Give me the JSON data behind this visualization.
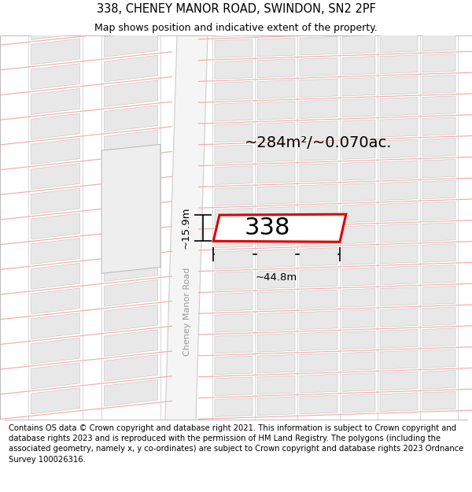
{
  "title_line1": "338, CHENEY MANOR ROAD, SWINDON, SN2 2PF",
  "title_line2": "Map shows position and indicative extent of the property.",
  "footer_text": "Contains OS data © Crown copyright and database right 2021. This information is subject to Crown copyright and database rights 2023 and is reproduced with the permission of HM Land Registry. The polygons (including the associated geometry, namely x, y co-ordinates) are subject to Crown copyright and database rights 2023 Ordnance Survey 100026316.",
  "area_label": "~284m²/~0.070ac.",
  "width_label": "~44.8m",
  "height_label": "~15.9m",
  "plot_number": "338",
  "road_label": "Cheney Manor Road",
  "map_bg": "#ffffff",
  "block_fill": "#e8e8e8",
  "block_edge": "#c0c0c0",
  "road_fill": "#f0f0f0",
  "red_color": "#dd0000",
  "pink_line": "#f5aaaa",
  "title_fontsize": 10.5,
  "subtitle_fontsize": 9,
  "footer_fontsize": 7.2,
  "area_fontsize": 14,
  "plot_fontsize": 22,
  "dim_fontsize": 9.5,
  "road_fontsize": 8
}
